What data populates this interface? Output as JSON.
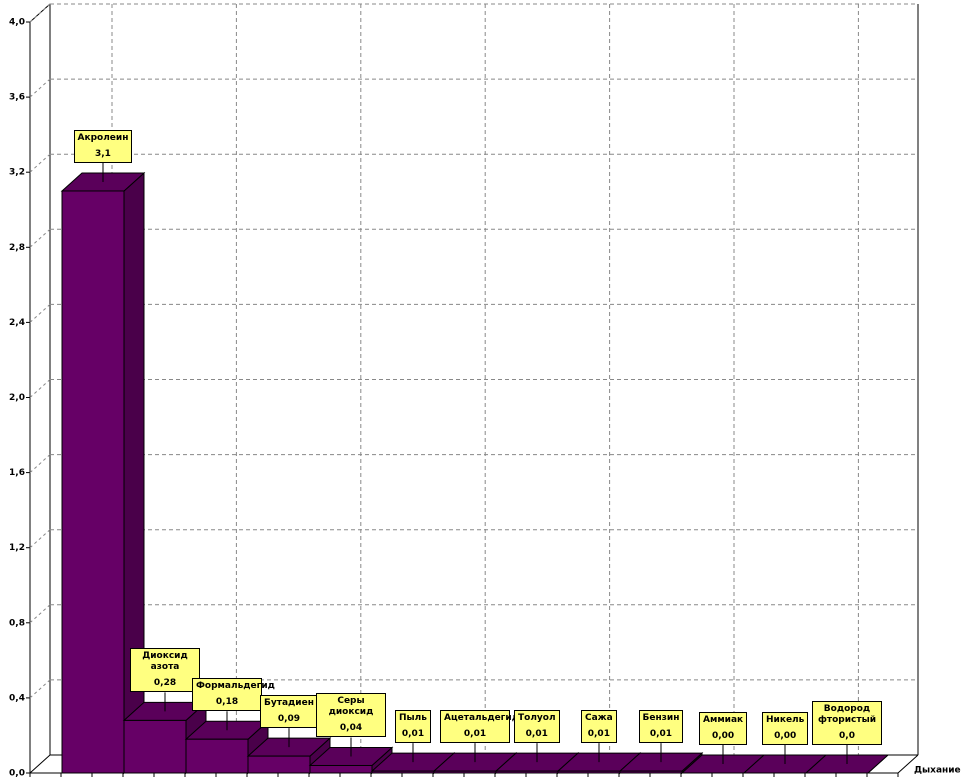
{
  "chart_data": {
    "type": "bar3d",
    "categories": [
      "Акролеин",
      "Диоксид азота",
      "Формальдегид",
      "Бутадиен",
      "Серы диоксид",
      "Пыль",
      "Ацетальдегид",
      "Толуол",
      "Сажа",
      "Бензин",
      "Аммиак",
      "Никель",
      "Водород фтористый"
    ],
    "values": [
      3.1,
      0.28,
      0.18,
      0.09,
      0.04,
      0.01,
      0.01,
      0.01,
      0.01,
      0.01,
      0.0,
      0.0,
      0.0
    ],
    "value_labels": [
      "3,1",
      "0,28",
      "0,18",
      "0,09",
      "0,04",
      "0,01",
      "0,01",
      "0,01",
      "0,01",
      "0,01",
      "0,00",
      "0,00",
      "0,0"
    ],
    "color": "#660066",
    "x_label": "Дыхание",
    "ylim": [
      0,
      4
    ],
    "yticks": [
      {
        "value": 0,
        "label": "0,0"
      },
      {
        "value": 0.4,
        "label": "0,4"
      },
      {
        "value": 0.8,
        "label": "0,8"
      },
      {
        "value": 1.2,
        "label": "1,2"
      },
      {
        "value": 1.6,
        "label": "1,6"
      },
      {
        "value": 2.0,
        "label": "2,0"
      },
      {
        "value": 2.4,
        "label": "2,4"
      },
      {
        "value": 2.8,
        "label": "2,8"
      },
      {
        "value": 3.2,
        "label": "3,2"
      },
      {
        "value": 3.6,
        "label": "3,6"
      },
      {
        "value": 4.0,
        "label": "4,0"
      }
    ],
    "grid": true
  }
}
